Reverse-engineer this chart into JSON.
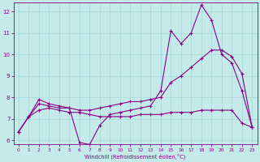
{
  "xlabel": "Windchill (Refroidissement éolien,°C)",
  "bg_color": "#c5eaea",
  "grid_color": "#a8d8d8",
  "line_color": "#880088",
  "xlim": [
    -0.5,
    23.5
  ],
  "ylim": [
    5.8,
    12.4
  ],
  "yticks": [
    6,
    7,
    8,
    9,
    10,
    11,
    12
  ],
  "xticks": [
    0,
    1,
    2,
    3,
    4,
    5,
    6,
    7,
    8,
    9,
    10,
    11,
    12,
    13,
    14,
    15,
    16,
    17,
    18,
    19,
    20,
    21,
    22,
    23
  ],
  "series1_y": [
    6.4,
    7.1,
    7.9,
    7.7,
    7.6,
    7.5,
    5.9,
    5.8,
    6.7,
    7.2,
    7.3,
    7.4,
    7.5,
    7.6,
    8.3,
    11.1,
    10.5,
    11.0,
    12.3,
    11.6,
    10.0,
    9.6,
    8.3,
    6.6
  ],
  "series2_y": [
    6.4,
    7.1,
    7.7,
    7.6,
    7.5,
    7.5,
    7.4,
    7.4,
    7.5,
    7.6,
    7.7,
    7.8,
    7.8,
    7.9,
    8.0,
    8.7,
    9.0,
    9.4,
    9.8,
    10.2,
    10.2,
    9.9,
    9.1,
    6.6
  ],
  "series3_y": [
    6.4,
    7.1,
    7.4,
    7.5,
    7.4,
    7.3,
    7.3,
    7.2,
    7.1,
    7.1,
    7.1,
    7.1,
    7.2,
    7.2,
    7.2,
    7.3,
    7.3,
    7.3,
    7.4,
    7.4,
    7.4,
    7.4,
    6.8,
    6.6
  ]
}
